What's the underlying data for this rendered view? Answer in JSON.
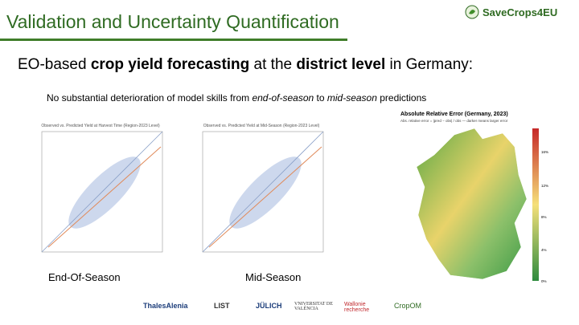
{
  "header": {
    "title": "Validation and Uncertainty Quantification",
    "brand": "SaveCrops4EU"
  },
  "heading": [
    "EO-based ",
    "crop yield forecasting",
    " at the ",
    "district level",
    " in Germany:"
  ],
  "subheading": [
    "No substantial deterioration of model skills from ",
    "end-of-season",
    " to ",
    "mid-season",
    " predictions"
  ],
  "plots": [
    {
      "title": "Observed vs. Predicted Yield at Harvest Time (Region-2023 Level)",
      "caption": "End-Of-Season"
    },
    {
      "title": "Observed vs. Predicted Yield at Mid-Season (Region-2023 Level)",
      "caption": "Mid-Season"
    }
  ],
  "map": {
    "title": "Absolute Relative Error (Germany, 2023)",
    "subtitle": "Abs. relative error = |pred − obs| / obs — darker means larger error",
    "colorbar_labels": [
      "16%",
      "12%",
      "8%",
      "4%",
      "0%"
    ]
  },
  "footer_logos": [
    "ThalesAlenia",
    "LIST",
    "JÜLICH",
    "VNIVERSITAT DE VALÈNCIA",
    "Wallonie recherche",
    "CropOM"
  ]
}
